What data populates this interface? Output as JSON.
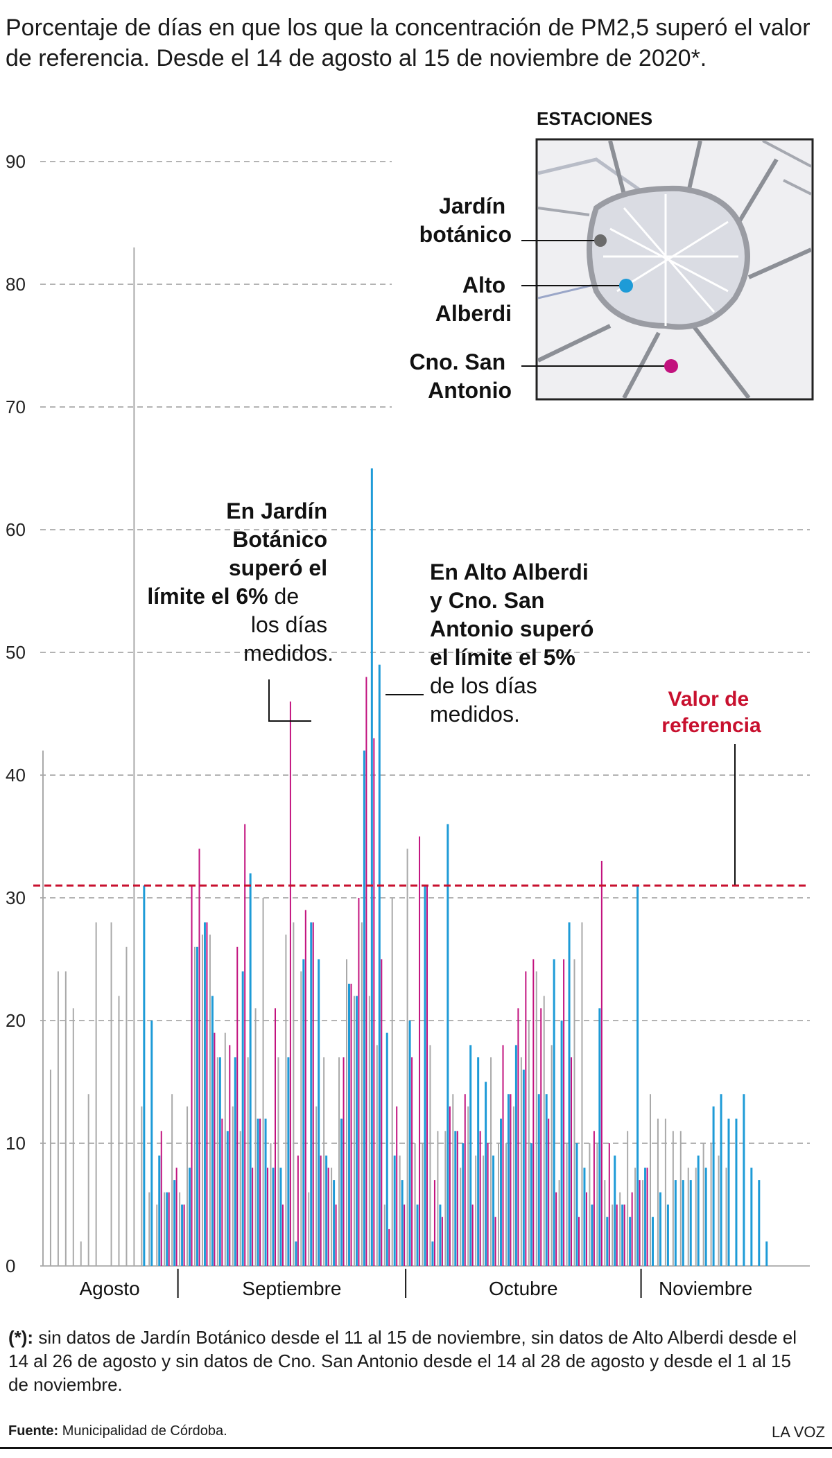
{
  "title": "Porcentaje de días en que los que la concentración de PM2,5 superó el valor de referencia. Desde el 14 de agosto al 15 de noviembre de 2020*.",
  "map": {
    "heading": "ESTACIONES",
    "stations": [
      {
        "name_line1": "Jardín",
        "name_line2": "botánico",
        "color": "#6b6b6b"
      },
      {
        "name_line1": "Alto",
        "name_line2": "Alberdi",
        "color": "#1e9bd7"
      },
      {
        "name_line1": "Cno. San",
        "name_line2": "Antonio",
        "color": "#c2127e"
      }
    ]
  },
  "annotations": {
    "jardin": {
      "bold": [
        "En Jardín",
        "Botánico",
        "superó el",
        "límite el 6%"
      ],
      "normal_inline": " de",
      "normal": [
        "los días",
        "medidos."
      ]
    },
    "alto": {
      "bold": [
        "En Alto Alberdi",
        "y Cno. San",
        "Antonio superó",
        "el límite el 5%"
      ],
      "normal": [
        "de los días",
        "medidos."
      ]
    },
    "reference": {
      "line1": "Valor de",
      "line2": "referencia",
      "color": "#c8102e"
    }
  },
  "footnote": {
    "bold": "(*):",
    "text": " sin datos de Jardín Botánico desde el 11 al 15 de noviembre, sin datos de Alto Alberdi desde el 14 al 26 de agosto y sin datos de Cno. San Antonio desde el 14 al 28 de agosto y desde el 1 al 15 de noviembre."
  },
  "source": {
    "label": "Fuente:",
    "text": " Municipalidad de Córdoba."
  },
  "brand": "LA VOZ",
  "chart_data": {
    "type": "bar",
    "title": "",
    "xlabel": "",
    "ylabel": "",
    "ylim": [
      0,
      90
    ],
    "yticks": [
      0,
      10,
      20,
      30,
      40,
      50,
      60,
      70,
      80,
      90
    ],
    "grid": true,
    "reference_value": 31,
    "months": [
      {
        "label": "Agosto",
        "start_day": 0
      },
      {
        "label": "Septiembre",
        "start_day": 18
      },
      {
        "label": "Octubre",
        "start_day": 48
      },
      {
        "label": "Noviembre",
        "start_day": 79
      }
    ],
    "series": [
      {
        "name": "Jardín botánico",
        "color": "#a9a9a9",
        "values": [
          42,
          16,
          24,
          24,
          21,
          2,
          14,
          28,
          0,
          28,
          22,
          26,
          83,
          13,
          6,
          5,
          6,
          14,
          6,
          13,
          26,
          27,
          27,
          17,
          19,
          13,
          11,
          17,
          21,
          30,
          10,
          17,
          27,
          28,
          24,
          6,
          13,
          17,
          8,
          17,
          25,
          22,
          28,
          22,
          18,
          5,
          30,
          9,
          34,
          10,
          10,
          18,
          11,
          11,
          14,
          8,
          13,
          9,
          9,
          17,
          10,
          10,
          13,
          17,
          20,
          24,
          22,
          18,
          7,
          10,
          25,
          28,
          10,
          10,
          7,
          5,
          6,
          11,
          8,
          7,
          14,
          12,
          12,
          11,
          11,
          8,
          8,
          10,
          10,
          9,
          8,
          null,
          null,
          null,
          null,
          null
        ]
      },
      {
        "name": "Alto Alberdi",
        "color": "#1e9bd7",
        "values": [
          null,
          null,
          null,
          null,
          null,
          null,
          null,
          null,
          null,
          null,
          null,
          null,
          null,
          31,
          20,
          9,
          6,
          7,
          5,
          8,
          26,
          28,
          22,
          17,
          11,
          17,
          24,
          32,
          12,
          12,
          8,
          8,
          17,
          2,
          25,
          28,
          25,
          9,
          7,
          12,
          23,
          22,
          42,
          65,
          49,
          19,
          9,
          7,
          20,
          5,
          31,
          2,
          5,
          36,
          11,
          10,
          18,
          17,
          15,
          9,
          12,
          14,
          18,
          16,
          10,
          14,
          14,
          25,
          20,
          28,
          10,
          8,
          5,
          21,
          4,
          9,
          5,
          4,
          31,
          8,
          4,
          6,
          5,
          7,
          7,
          7,
          9,
          8,
          13,
          14,
          12,
          12,
          14,
          8,
          7,
          2
        ]
      },
      {
        "name": "Cno. San Antonio",
        "color": "#c2127e",
        "values": [
          null,
          null,
          null,
          null,
          null,
          null,
          null,
          null,
          null,
          null,
          null,
          null,
          null,
          null,
          null,
          11,
          6,
          8,
          5,
          31,
          34,
          28,
          19,
          12,
          18,
          26,
          36,
          8,
          12,
          8,
          21,
          5,
          46,
          9,
          29,
          28,
          9,
          8,
          5,
          17,
          23,
          30,
          48,
          43,
          25,
          3,
          13,
          5,
          17,
          35,
          31,
          7,
          4,
          13,
          11,
          14,
          5,
          11,
          10,
          4,
          18,
          14,
          21,
          24,
          25,
          21,
          12,
          6,
          25,
          17,
          4,
          6,
          11,
          33,
          10,
          5,
          5,
          6,
          7,
          8,
          null,
          null,
          null,
          null,
          null,
          null,
          null,
          null,
          null,
          null,
          null,
          null,
          null,
          null,
          null,
          null
        ]
      }
    ]
  }
}
